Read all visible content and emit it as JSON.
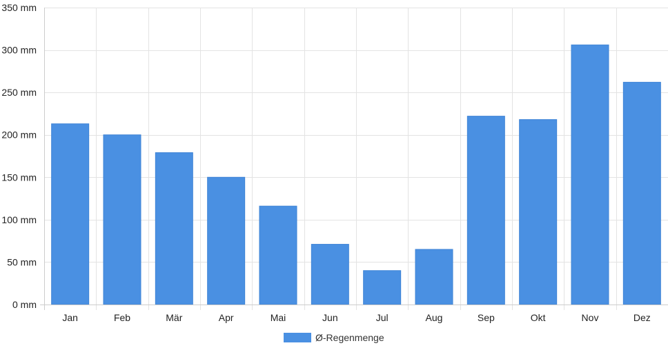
{
  "chart_data": {
    "type": "bar",
    "categories": [
      "Jan",
      "Feb",
      "Mär",
      "Apr",
      "Mai",
      "Jun",
      "Jul",
      "Aug",
      "Sep",
      "Okt",
      "Nov",
      "Dez"
    ],
    "series": [
      {
        "name": "Ø-Regenmenge",
        "values": [
          213,
          200,
          179,
          150,
          116,
          71,
          40,
          65,
          222,
          218,
          306,
          262
        ],
        "color": "#4a90e2"
      }
    ],
    "ylim": [
      0,
      350
    ],
    "yticks": [
      0,
      50,
      100,
      150,
      200,
      250,
      300,
      350
    ],
    "ytick_labels": [
      "0 mm",
      "50 mm",
      "100 mm",
      "150 mm",
      "200 mm",
      "250 mm",
      "300 mm",
      "350 mm"
    ],
    "grid": true,
    "legend": "bottom-center"
  }
}
